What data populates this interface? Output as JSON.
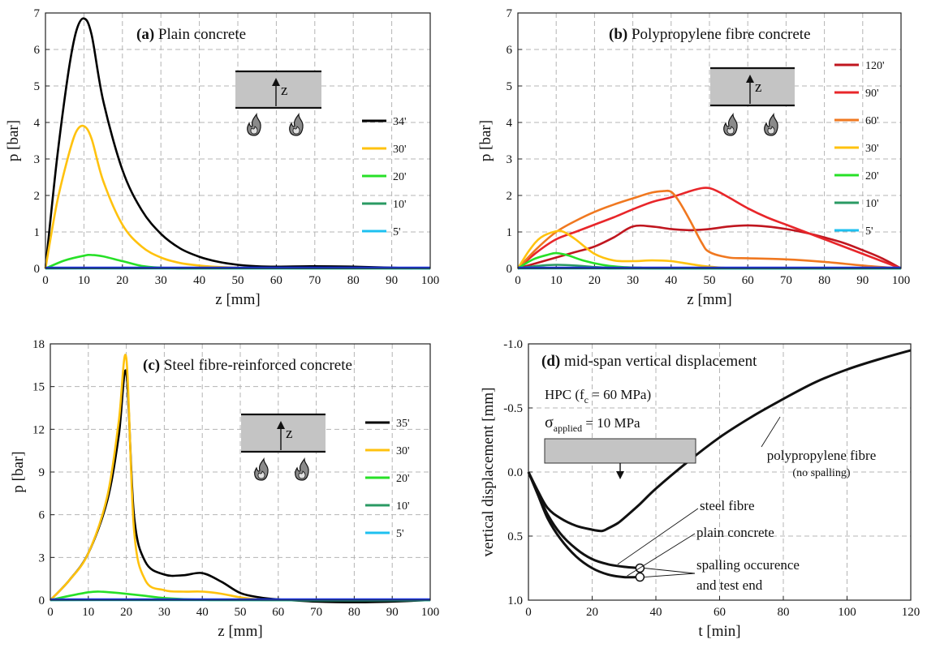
{
  "figure": {
    "colors": {
      "34": "#000000",
      "35": "#000000",
      "120": "#c0161f",
      "90": "#e8262a",
      "60": "#f07820",
      "30": "#ffc20e",
      "20": "#27e027",
      "10": "#2a9a63",
      "5": "#1ec0f0",
      "trace": "#1a36e0",
      "specimen": "#c4c4c4"
    },
    "icons": [
      "flame-icon",
      "arrow-up-icon",
      "arrow-down-icon"
    ]
  },
  "chart_data": [
    {
      "type": "line",
      "panel": "a",
      "title_prefix": "(a)",
      "title": "Plain concrete",
      "xlabel": "z [mm]",
      "ylabel": "p [bar]",
      "xlim": [
        0,
        100
      ],
      "ylim": [
        0,
        7
      ],
      "xticks": [
        "0",
        "10",
        "20",
        "30",
        "40",
        "50",
        "60",
        "70",
        "80",
        "90",
        "100"
      ],
      "yticks": [
        "0",
        "1",
        "2",
        "3",
        "4",
        "5",
        "6",
        "7"
      ],
      "grid": true,
      "legend_position": "right",
      "inset_label": "z",
      "series": [
        {
          "name": "34'",
          "color": "#000000",
          "x": [
            0,
            3,
            6,
            8,
            10,
            12,
            15,
            20,
            25,
            30,
            35,
            40,
            45,
            50,
            55,
            60,
            70,
            80,
            90,
            100
          ],
          "y": [
            0,
            3.0,
            5.4,
            6.5,
            6.85,
            6.4,
            4.6,
            2.7,
            1.6,
            0.95,
            0.55,
            0.32,
            0.18,
            0.1,
            0.06,
            0.05,
            0.06,
            0.05,
            0.02,
            0
          ]
        },
        {
          "name": "30'",
          "color": "#ffc20e",
          "x": [
            0,
            3,
            6,
            8,
            10,
            12,
            15,
            20,
            25,
            30,
            35,
            40,
            45,
            50,
            55,
            60,
            70,
            100
          ],
          "y": [
            0,
            1.8,
            3.1,
            3.75,
            3.9,
            3.55,
            2.4,
            1.2,
            0.6,
            0.3,
            0.15,
            0.08,
            0.04,
            0.02,
            0.01,
            0.01,
            0,
            0
          ]
        },
        {
          "name": "20'",
          "color": "#27e027",
          "x": [
            0,
            5,
            10,
            12,
            15,
            20,
            25,
            30,
            35,
            40,
            100
          ],
          "y": [
            0,
            0.22,
            0.35,
            0.37,
            0.33,
            0.2,
            0.07,
            0.02,
            0,
            0,
            0
          ]
        },
        {
          "name": "10'",
          "color": "#2a9a63",
          "x": [
            0,
            20,
            40,
            60,
            80,
            100
          ],
          "y": [
            0,
            0.01,
            0.01,
            0.01,
            0.01,
            0
          ]
        },
        {
          "name": "5'",
          "color": "#1ec0f0",
          "x": [
            0,
            20,
            40,
            60,
            80,
            100
          ],
          "y": [
            0,
            0,
            0,
            0,
            0,
            0
          ]
        },
        {
          "name": "",
          "color": "#1a36e0",
          "x": [
            0,
            20,
            40,
            60,
            80,
            100
          ],
          "y": [
            0.02,
            0.02,
            0.02,
            0.02,
            0.02,
            0.02
          ]
        }
      ]
    },
    {
      "type": "line",
      "panel": "b",
      "title_prefix": "(b)",
      "title": "Polypropylene fibre concrete",
      "xlabel": "z [mm]",
      "ylabel": "p [bar]",
      "xlim": [
        0,
        100
      ],
      "ylim": [
        0,
        7
      ],
      "xticks": [
        "0",
        "10",
        "20",
        "30",
        "40",
        "50",
        "60",
        "70",
        "80",
        "90",
        "100"
      ],
      "yticks": [
        "0",
        "1",
        "2",
        "3",
        "4",
        "5",
        "6",
        "7"
      ],
      "grid": true,
      "legend_position": "right",
      "inset_label": "z",
      "series": [
        {
          "name": "120'",
          "color": "#c0161f",
          "x": [
            0,
            5,
            10,
            15,
            20,
            25,
            30,
            35,
            40,
            45,
            50,
            55,
            60,
            65,
            70,
            75,
            80,
            85,
            90,
            95,
            100
          ],
          "y": [
            0,
            0.15,
            0.3,
            0.45,
            0.6,
            0.85,
            1.15,
            1.15,
            1.08,
            1.05,
            1.08,
            1.15,
            1.18,
            1.15,
            1.08,
            0.98,
            0.85,
            0.7,
            0.5,
            0.28,
            0
          ]
        },
        {
          "name": "90'",
          "color": "#e8262a",
          "x": [
            0,
            5,
            10,
            15,
            20,
            25,
            30,
            35,
            40,
            45,
            48,
            50,
            52,
            55,
            60,
            65,
            70,
            75,
            80,
            85,
            90,
            95,
            100
          ],
          "y": [
            0,
            0.45,
            0.8,
            1.0,
            1.2,
            1.4,
            1.62,
            1.82,
            1.95,
            2.12,
            2.2,
            2.2,
            2.12,
            1.95,
            1.65,
            1.4,
            1.2,
            1.0,
            0.8,
            0.6,
            0.4,
            0.2,
            0
          ]
        },
        {
          "name": "60'",
          "color": "#f07820",
          "x": [
            0,
            5,
            10,
            15,
            20,
            25,
            30,
            35,
            38,
            40,
            42,
            45,
            48,
            50,
            55,
            60,
            70,
            80,
            90,
            100
          ],
          "y": [
            0,
            0.55,
            1.0,
            1.3,
            1.55,
            1.75,
            1.92,
            2.08,
            2.12,
            2.1,
            1.85,
            1.3,
            0.7,
            0.45,
            0.3,
            0.28,
            0.25,
            0.18,
            0.08,
            0
          ]
        },
        {
          "name": "30'",
          "color": "#ffc20e",
          "x": [
            0,
            3,
            6,
            10,
            12,
            15,
            20,
            25,
            30,
            35,
            40,
            45,
            50,
            60,
            100
          ],
          "y": [
            0,
            0.5,
            0.85,
            1.02,
            1.0,
            0.8,
            0.4,
            0.22,
            0.2,
            0.22,
            0.2,
            0.12,
            0.05,
            0,
            0
          ]
        },
        {
          "name": "20'",
          "color": "#27e027",
          "x": [
            0,
            4,
            8,
            10,
            13,
            17,
            22,
            27,
            32,
            40,
            100
          ],
          "y": [
            0,
            0.25,
            0.38,
            0.42,
            0.36,
            0.22,
            0.1,
            0.04,
            0.02,
            0,
            0
          ]
        },
        {
          "name": "10'",
          "color": "#2a9a63",
          "x": [
            0,
            5,
            10,
            15,
            20,
            25,
            30,
            100
          ],
          "y": [
            0,
            0.07,
            0.1,
            0.08,
            0.04,
            0.01,
            0,
            0
          ]
        },
        {
          "name": "5'",
          "color": "#1ec0f0",
          "x": [
            0,
            20,
            40,
            60,
            80,
            100
          ],
          "y": [
            0,
            0,
            0,
            0,
            0,
            0
          ]
        },
        {
          "name": "",
          "color": "#1a36e0",
          "x": [
            0,
            20,
            40,
            60,
            80,
            100
          ],
          "y": [
            0.02,
            0.02,
            0.02,
            0.02,
            0.02,
            0.02
          ]
        }
      ]
    },
    {
      "type": "line",
      "panel": "c",
      "title_prefix": "(c)",
      "title": "Steel fibre-reinforced concrete",
      "xlabel": "z [mm]",
      "ylabel": "p [bar]",
      "xlim": [
        0,
        100
      ],
      "ylim": [
        0,
        18
      ],
      "xticks": [
        "0",
        "10",
        "20",
        "30",
        "40",
        "50",
        "60",
        "70",
        "80",
        "90",
        "100"
      ],
      "yticks": [
        "0",
        "3",
        "6",
        "9",
        "12",
        "15",
        "18"
      ],
      "grid": true,
      "legend_position": "right",
      "inset_label": "z",
      "series": [
        {
          "name": "35'",
          "color": "#000000",
          "x": [
            0,
            5,
            10,
            15,
            18,
            20,
            22,
            25,
            30,
            35,
            40,
            45,
            50,
            55,
            60,
            70,
            80,
            90,
            100
          ],
          "y": [
            0,
            1.4,
            3.3,
            7.0,
            11.5,
            16.0,
            6.0,
            2.7,
            1.8,
            1.75,
            1.9,
            1.3,
            0.5,
            0.2,
            0.05,
            -0.1,
            -0.15,
            -0.1,
            0
          ]
        },
        {
          "name": "30'",
          "color": "#ffc20e",
          "x": [
            0,
            5,
            10,
            15,
            18,
            20,
            22,
            25,
            30,
            35,
            40,
            45,
            50,
            55,
            60,
            100
          ],
          "y": [
            0,
            1.4,
            3.3,
            7.3,
            12.5,
            17.0,
            5.0,
            1.4,
            0.7,
            0.6,
            0.6,
            0.45,
            0.2,
            0.05,
            0,
            0
          ]
        },
        {
          "name": "20'",
          "color": "#27e027",
          "x": [
            0,
            5,
            10,
            13,
            18,
            25,
            30,
            40,
            50,
            100
          ],
          "y": [
            0,
            0.3,
            0.55,
            0.6,
            0.5,
            0.3,
            0.15,
            0.02,
            0,
            0
          ]
        },
        {
          "name": "10'",
          "color": "#2a9a63",
          "x": [
            0,
            20,
            40,
            60,
            80,
            100
          ],
          "y": [
            0,
            0.02,
            0.02,
            0.01,
            0,
            0
          ]
        },
        {
          "name": "5'",
          "color": "#1ec0f0",
          "x": [
            0,
            20,
            40,
            60,
            80,
            100
          ],
          "y": [
            0,
            0,
            0,
            0,
            0,
            0
          ]
        },
        {
          "name": "",
          "color": "#1a36e0",
          "x": [
            0,
            20,
            40,
            60,
            80,
            100
          ],
          "y": [
            0.05,
            0.05,
            0.05,
            0.05,
            0.05,
            0.05
          ]
        }
      ]
    },
    {
      "type": "line",
      "panel": "d",
      "title_prefix": "(d)",
      "title": "mid-span vertical displacement",
      "xlabel": "t [min]",
      "ylabel": "vertical displacement [mm]",
      "xlim": [
        0,
        120
      ],
      "ylim": [
        -1.0,
        1.0
      ],
      "y_inverted": true,
      "xticks": [
        "0",
        "20",
        "40",
        "60",
        "80",
        "100",
        "120"
      ],
      "yticks": [
        "-1.0",
        "-0.5",
        "0.0",
        "0.5",
        "1.0"
      ],
      "grid": true,
      "info": {
        "hpc_main": "HPC (f",
        "hpc_sub": "c",
        "hpc_rest": " = 60 MPa)",
        "sigma_sym": "σ",
        "sigma_sub": "applied",
        "sigma_rest": " = 10 MPa"
      },
      "labels": {
        "pp": "polypropylene fibre",
        "pp_note": "(no spalling)",
        "steel": "steel fibre",
        "plain": "plain concrete",
        "spall1": "spalling occurence",
        "spall2": "and test end"
      },
      "series": [
        {
          "name": "polypropylene fibre",
          "color": "#111111",
          "x": [
            0,
            3,
            6,
            10,
            15,
            20,
            23,
            25,
            28,
            30,
            35,
            40,
            50,
            60,
            70,
            80,
            90,
            100,
            110,
            120
          ],
          "y": [
            0,
            0.15,
            0.28,
            0.36,
            0.42,
            0.45,
            0.46,
            0.44,
            0.4,
            0.36,
            0.25,
            0.13,
            -0.08,
            -0.27,
            -0.43,
            -0.57,
            -0.7,
            -0.8,
            -0.88,
            -0.95
          ]
        },
        {
          "name": "steel fibre",
          "color": "#111111",
          "x": [
            0,
            3,
            6,
            10,
            15,
            20,
            25,
            30,
            35
          ],
          "y": [
            0,
            0.17,
            0.33,
            0.48,
            0.6,
            0.68,
            0.72,
            0.74,
            0.75
          ]
        },
        {
          "name": "plain concrete",
          "color": "#111111",
          "x": [
            0,
            3,
            6,
            10,
            15,
            20,
            25,
            30,
            35
          ],
          "y": [
            0,
            0.18,
            0.36,
            0.52,
            0.66,
            0.75,
            0.8,
            0.82,
            0.82
          ]
        }
      ],
      "end_markers": [
        {
          "x": 35,
          "y": 0.75
        },
        {
          "x": 35,
          "y": 0.82
        }
      ]
    }
  ]
}
